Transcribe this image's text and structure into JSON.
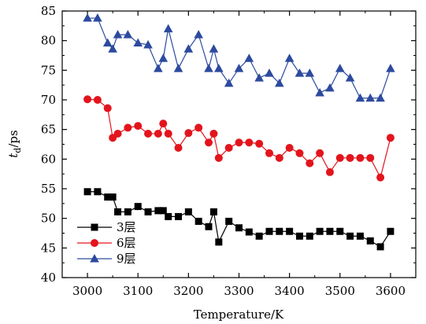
{
  "chart_data": {
    "type": "line",
    "xlabel": "Temperature/K",
    "ylabel_main": "t",
    "ylabel_sub": "d",
    "ylabel_unit": "/ps",
    "xlim": [
      2950,
      3650
    ],
    "ylim": [
      40,
      85
    ],
    "xticks": [
      3000,
      3100,
      3200,
      3300,
      3400,
      3500,
      3600
    ],
    "yticks": [
      40,
      45,
      50,
      55,
      60,
      65,
      70,
      75,
      80,
      85
    ],
    "legend_position": "bottom-left",
    "series": [
      {
        "name": "3层",
        "color": "#000000",
        "marker": "square",
        "points": [
          [
            3000,
            54.5
          ],
          [
            3020,
            54.5
          ],
          [
            3040,
            53.6
          ],
          [
            3050,
            53.6
          ],
          [
            3060,
            51.1
          ],
          [
            3080,
            51.1
          ],
          [
            3100,
            52
          ],
          [
            3120,
            51.1
          ],
          [
            3140,
            51.3
          ],
          [
            3150,
            51.3
          ],
          [
            3160,
            50.3
          ],
          [
            3180,
            50.3
          ],
          [
            3200,
            51.1
          ],
          [
            3220,
            49.5
          ],
          [
            3240,
            48.6
          ],
          [
            3250,
            51.1
          ],
          [
            3260,
            46
          ],
          [
            3280,
            49.5
          ],
          [
            3300,
            48.4
          ],
          [
            3320,
            47.7
          ],
          [
            3340,
            47
          ],
          [
            3360,
            47.8
          ],
          [
            3380,
            47.8
          ],
          [
            3400,
            47.8
          ],
          [
            3420,
            47
          ],
          [
            3440,
            47
          ],
          [
            3460,
            47.8
          ],
          [
            3480,
            47.8
          ],
          [
            3500,
            47.8
          ],
          [
            3520,
            47
          ],
          [
            3540,
            47
          ],
          [
            3560,
            46.2
          ],
          [
            3580,
            45.2
          ],
          [
            3600,
            47.8
          ]
        ]
      },
      {
        "name": "6层",
        "color": "#e3141c",
        "marker": "circle",
        "points": [
          [
            3000,
            70.1
          ],
          [
            3020,
            70
          ],
          [
            3040,
            68.6
          ],
          [
            3050,
            63.6
          ],
          [
            3060,
            64.3
          ],
          [
            3080,
            65.3
          ],
          [
            3100,
            65.6
          ],
          [
            3120,
            64.3
          ],
          [
            3140,
            64.3
          ],
          [
            3150,
            66
          ],
          [
            3160,
            64.3
          ],
          [
            3180,
            61.9
          ],
          [
            3200,
            64.4
          ],
          [
            3220,
            65.3
          ],
          [
            3240,
            62.8
          ],
          [
            3250,
            64.3
          ],
          [
            3260,
            60.2
          ],
          [
            3280,
            61.9
          ],
          [
            3300,
            62.8
          ],
          [
            3320,
            62.8
          ],
          [
            3340,
            62.6
          ],
          [
            3360,
            61
          ],
          [
            3380,
            60.2
          ],
          [
            3400,
            61.9
          ],
          [
            3420,
            61
          ],
          [
            3440,
            59.3
          ],
          [
            3460,
            61
          ],
          [
            3480,
            57.8
          ],
          [
            3500,
            60.2
          ],
          [
            3520,
            60.2
          ],
          [
            3540,
            60.2
          ],
          [
            3560,
            60.2
          ],
          [
            3580,
            56.9
          ],
          [
            3600,
            63.6
          ]
        ]
      },
      {
        "name": "9层",
        "color": "#2c4a9e",
        "marker": "triangle",
        "points": [
          [
            3000,
            83.8
          ],
          [
            3020,
            83.8
          ],
          [
            3040,
            79.6
          ],
          [
            3050,
            78.6
          ],
          [
            3060,
            81
          ],
          [
            3080,
            81
          ],
          [
            3100,
            79.6
          ],
          [
            3120,
            79.3
          ],
          [
            3140,
            75.3
          ],
          [
            3150,
            77
          ],
          [
            3160,
            82
          ],
          [
            3180,
            75.3
          ],
          [
            3200,
            78.6
          ],
          [
            3220,
            81
          ],
          [
            3240,
            75.3
          ],
          [
            3250,
            78.6
          ],
          [
            3260,
            75.3
          ],
          [
            3280,
            72.8
          ],
          [
            3300,
            75.3
          ],
          [
            3320,
            77
          ],
          [
            3340,
            73.7
          ],
          [
            3360,
            74.5
          ],
          [
            3380,
            72.8
          ],
          [
            3400,
            77
          ],
          [
            3420,
            74.5
          ],
          [
            3440,
            74.5
          ],
          [
            3460,
            71.2
          ],
          [
            3480,
            72
          ],
          [
            3500,
            75.3
          ],
          [
            3520,
            73.7
          ],
          [
            3540,
            70.3
          ],
          [
            3560,
            70.3
          ],
          [
            3580,
            70.3
          ],
          [
            3600,
            75.3
          ]
        ]
      }
    ]
  }
}
